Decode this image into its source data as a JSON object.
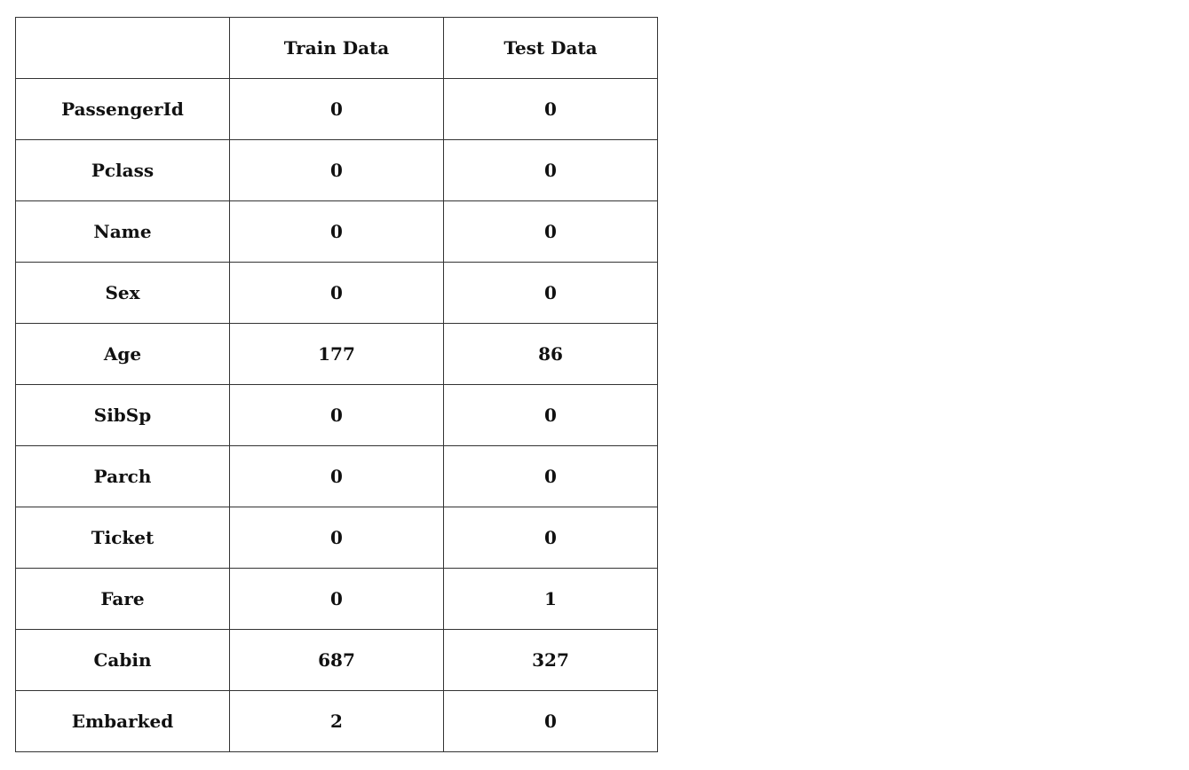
{
  "table": {
    "headers": [
      "",
      "Train Data",
      "Test Data"
    ],
    "rows": [
      [
        "PassengerId",
        "0",
        "0"
      ],
      [
        "Pclass",
        "0",
        "0"
      ],
      [
        "Name",
        "0",
        "0"
      ],
      [
        "Sex",
        "0",
        "0"
      ],
      [
        "Age",
        "177",
        "86"
      ],
      [
        "SibSp",
        "0",
        "0"
      ],
      [
        "Parch",
        "0",
        "0"
      ],
      [
        "Ticket",
        "0",
        "0"
      ],
      [
        "Fare",
        "0",
        "1"
      ],
      [
        "Cabin",
        "687",
        "327"
      ],
      [
        "Embarked",
        "2",
        "0"
      ]
    ]
  }
}
